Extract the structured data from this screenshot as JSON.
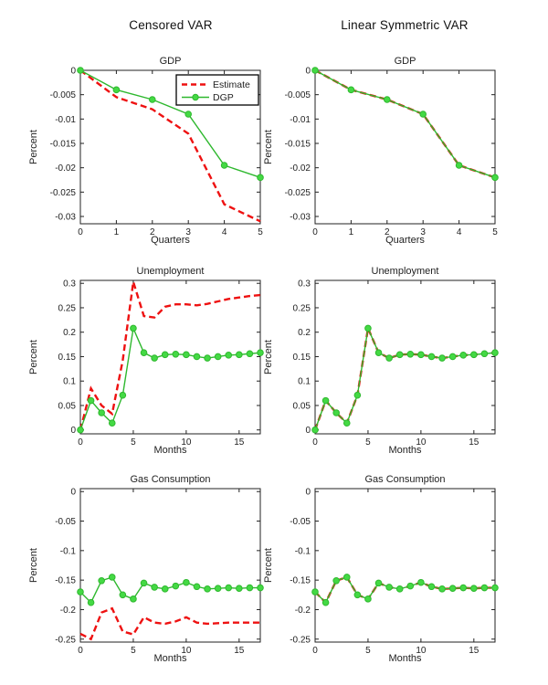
{
  "headers": {
    "left": "Censored VAR",
    "right": "Linear Symmetric VAR"
  },
  "colors": {
    "estimate_red": "#ee1111",
    "dgp_green_line": "#2eb82e",
    "dgp_green_marker": "#44d944",
    "axis": "#222222",
    "background": "#ffffff"
  },
  "chart_data": [
    {
      "type": "line",
      "panel": "censored-gdp",
      "title": "GDP",
      "xlabel": "Quarters",
      "ylabel": "Percent",
      "x": [
        0,
        1,
        2,
        3,
        4,
        5
      ],
      "xlim": [
        0,
        5
      ],
      "xticks": [
        0,
        1,
        2,
        3,
        4,
        5
      ],
      "ylim": [
        -0.0315,
        0
      ],
      "yticks": [
        0,
        -0.005,
        -0.01,
        -0.015,
        -0.02,
        -0.025,
        -0.03
      ],
      "legend": true,
      "grid": false,
      "series": [
        {
          "name": "Estimate",
          "style": "dashed",
          "color": "#ee1111",
          "values": [
            0,
            -0.0055,
            -0.008,
            -0.013,
            -0.0275,
            -0.031
          ]
        },
        {
          "name": "DGP",
          "style": "solid-marker",
          "color": "#2eb82e",
          "marker_color": "#44d944",
          "values": [
            0,
            -0.004,
            -0.006,
            -0.009,
            -0.0195,
            -0.022
          ]
        }
      ]
    },
    {
      "type": "line",
      "panel": "linear-gdp",
      "title": "GDP",
      "xlabel": "Quarters",
      "ylabel": "Percent",
      "x": [
        0,
        1,
        2,
        3,
        4,
        5
      ],
      "xlim": [
        0,
        5
      ],
      "xticks": [
        0,
        1,
        2,
        3,
        4,
        5
      ],
      "ylim": [
        -0.0315,
        0
      ],
      "yticks": [
        0,
        -0.005,
        -0.01,
        -0.015,
        -0.02,
        -0.025,
        -0.03
      ],
      "legend": false,
      "grid": false,
      "series": [
        {
          "name": "Estimate",
          "style": "dashed",
          "color": "#ee1111",
          "values": [
            0,
            -0.004,
            -0.006,
            -0.009,
            -0.0195,
            -0.022
          ]
        },
        {
          "name": "DGP",
          "style": "solid-marker",
          "color": "#2eb82e",
          "marker_color": "#44d944",
          "values": [
            0,
            -0.004,
            -0.006,
            -0.009,
            -0.0195,
            -0.022
          ]
        }
      ]
    },
    {
      "type": "line",
      "panel": "censored-unemployment",
      "title": "Unemployment",
      "xlabel": "Months",
      "ylabel": "Percent",
      "x": [
        0,
        1,
        2,
        3,
        4,
        5,
        6,
        7,
        8,
        9,
        10,
        11,
        12,
        13,
        14,
        15,
        16,
        17
      ],
      "xlim": [
        0,
        17
      ],
      "xticks": [
        0,
        5,
        10,
        15
      ],
      "ylim": [
        -0.008,
        0.306
      ],
      "yticks": [
        0,
        0.05,
        0.1,
        0.15,
        0.2,
        0.25,
        0.3
      ],
      "legend": false,
      "grid": false,
      "series": [
        {
          "name": "Estimate",
          "style": "dashed",
          "color": "#ee1111",
          "values": [
            0,
            0.085,
            0.05,
            0.033,
            0.142,
            0.303,
            0.233,
            0.23,
            0.252,
            0.257,
            0.257,
            0.255,
            0.258,
            0.263,
            0.268,
            0.271,
            0.274,
            0.276
          ]
        },
        {
          "name": "DGP",
          "style": "solid-marker",
          "color": "#2eb82e",
          "marker_color": "#44d944",
          "values": [
            0,
            0.06,
            0.035,
            0.014,
            0.071,
            0.208,
            0.158,
            0.147,
            0.154,
            0.155,
            0.154,
            0.15,
            0.147,
            0.15,
            0.153,
            0.154,
            0.156,
            0.158
          ]
        }
      ]
    },
    {
      "type": "line",
      "panel": "linear-unemployment",
      "title": "Unemployment",
      "xlabel": "Months",
      "ylabel": "Percent",
      "x": [
        0,
        1,
        2,
        3,
        4,
        5,
        6,
        7,
        8,
        9,
        10,
        11,
        12,
        13,
        14,
        15,
        16,
        17
      ],
      "xlim": [
        0,
        17
      ],
      "xticks": [
        0,
        5,
        10,
        15
      ],
      "ylim": [
        -0.008,
        0.306
      ],
      "yticks": [
        0,
        0.05,
        0.1,
        0.15,
        0.2,
        0.25,
        0.3
      ],
      "legend": false,
      "grid": false,
      "series": [
        {
          "name": "Estimate",
          "style": "dashed",
          "color": "#ee1111",
          "values": [
            0,
            0.06,
            0.035,
            0.014,
            0.071,
            0.208,
            0.158,
            0.147,
            0.154,
            0.155,
            0.154,
            0.15,
            0.147,
            0.15,
            0.153,
            0.154,
            0.156,
            0.158
          ]
        },
        {
          "name": "DGP",
          "style": "solid-marker",
          "color": "#2eb82e",
          "marker_color": "#44d944",
          "values": [
            0,
            0.06,
            0.035,
            0.014,
            0.071,
            0.208,
            0.158,
            0.147,
            0.154,
            0.155,
            0.154,
            0.15,
            0.147,
            0.15,
            0.153,
            0.154,
            0.156,
            0.158
          ]
        }
      ]
    },
    {
      "type": "line",
      "panel": "censored-gas-consumption",
      "title": "Gas Consumption",
      "xlabel": "Months",
      "ylabel": "Percent",
      "x": [
        0,
        1,
        2,
        3,
        4,
        5,
        6,
        7,
        8,
        9,
        10,
        11,
        12,
        13,
        14,
        15,
        16,
        17
      ],
      "xlim": [
        0,
        17
      ],
      "xticks": [
        0,
        5,
        10,
        15
      ],
      "ylim": [
        -0.255,
        0.005
      ],
      "yticks": [
        0,
        -0.05,
        -0.1,
        -0.15,
        -0.2,
        -0.25
      ],
      "legend": false,
      "grid": false,
      "series": [
        {
          "name": "Estimate",
          "style": "dashed",
          "color": "#ee1111",
          "values": [
            -0.241,
            -0.25,
            -0.205,
            -0.198,
            -0.237,
            -0.242,
            -0.213,
            -0.222,
            -0.224,
            -0.22,
            -0.213,
            -0.222,
            -0.224,
            -0.223,
            -0.222,
            -0.222,
            -0.222,
            -0.222
          ]
        },
        {
          "name": "DGP",
          "style": "solid-marker",
          "color": "#2eb82e",
          "marker_color": "#44d944",
          "values": [
            -0.17,
            -0.188,
            -0.151,
            -0.145,
            -0.175,
            -0.182,
            -0.155,
            -0.162,
            -0.165,
            -0.16,
            -0.154,
            -0.161,
            -0.165,
            -0.164,
            -0.163,
            -0.164,
            -0.163,
            -0.163
          ]
        }
      ]
    },
    {
      "type": "line",
      "panel": "linear-gas-consumption",
      "title": "Gas Consumption",
      "xlabel": "Months",
      "ylabel": "Percent",
      "x": [
        0,
        1,
        2,
        3,
        4,
        5,
        6,
        7,
        8,
        9,
        10,
        11,
        12,
        13,
        14,
        15,
        16,
        17
      ],
      "xlim": [
        0,
        17
      ],
      "xticks": [
        0,
        5,
        10,
        15
      ],
      "ylim": [
        -0.255,
        0.005
      ],
      "yticks": [
        0,
        -0.05,
        -0.1,
        -0.15,
        -0.2,
        -0.25
      ],
      "legend": false,
      "grid": false,
      "series": [
        {
          "name": "Estimate",
          "style": "dashed",
          "color": "#ee1111",
          "values": [
            -0.17,
            -0.188,
            -0.151,
            -0.145,
            -0.175,
            -0.182,
            -0.155,
            -0.162,
            -0.165,
            -0.16,
            -0.154,
            -0.161,
            -0.165,
            -0.164,
            -0.163,
            -0.164,
            -0.163,
            -0.163
          ]
        },
        {
          "name": "DGP",
          "style": "solid-marker",
          "color": "#2eb82e",
          "marker_color": "#44d944",
          "values": [
            -0.17,
            -0.188,
            -0.151,
            -0.145,
            -0.175,
            -0.182,
            -0.155,
            -0.162,
            -0.165,
            -0.16,
            -0.154,
            -0.161,
            -0.165,
            -0.164,
            -0.163,
            -0.164,
            -0.163,
            -0.163
          ]
        }
      ]
    }
  ]
}
